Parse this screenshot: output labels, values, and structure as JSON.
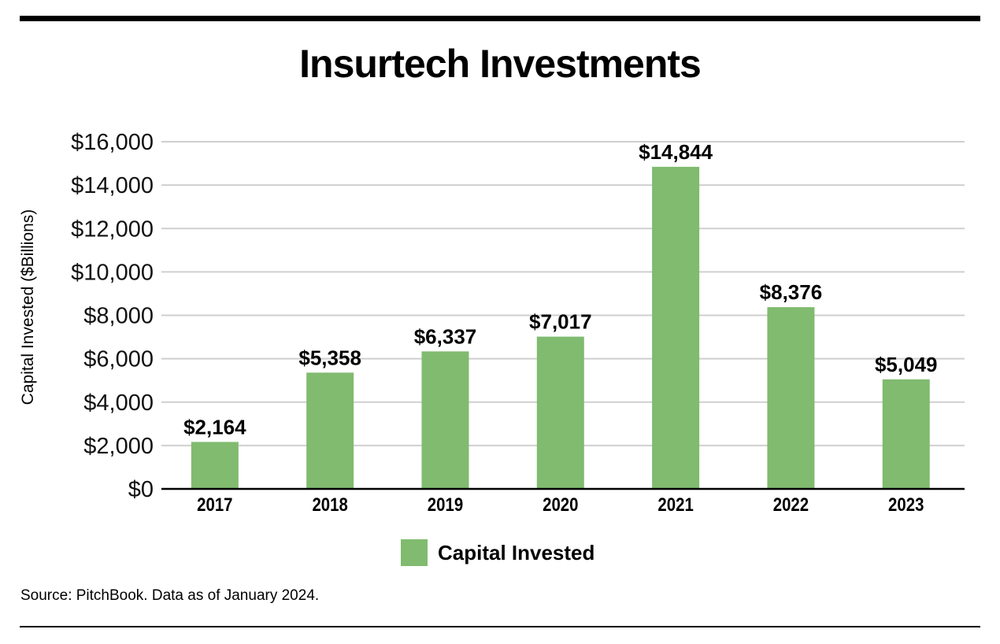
{
  "chart_data": {
    "type": "bar",
    "title": "Insurtech Investments",
    "xlabel": "",
    "ylabel": "Capital Invested ($Billions)",
    "categories": [
      "2017",
      "2018",
      "2019",
      "2020",
      "2021",
      "2022",
      "2023"
    ],
    "series": [
      {
        "name": "Capital Invested",
        "values": [
          2164,
          5358,
          6337,
          7017,
          14844,
          8376,
          5049
        ],
        "color": "#80bb6f"
      }
    ],
    "data_labels": [
      "$2,164",
      "$5,358",
      "$6,337",
      "$7,017",
      "$14,844",
      "$8,376",
      "$5,049"
    ],
    "ylim": [
      0,
      16000
    ],
    "yticks": [
      0,
      2000,
      4000,
      6000,
      8000,
      10000,
      12000,
      14000,
      16000
    ],
    "ytick_labels": [
      "$0",
      "$2,000",
      "$4,000",
      "$6,000",
      "$8,000",
      "$10,000",
      "$12,000",
      "$14,000",
      "$16,000"
    ],
    "grid": true,
    "legend": "bottom-center"
  },
  "source": "Source: PitchBook. Data as of January 2024."
}
